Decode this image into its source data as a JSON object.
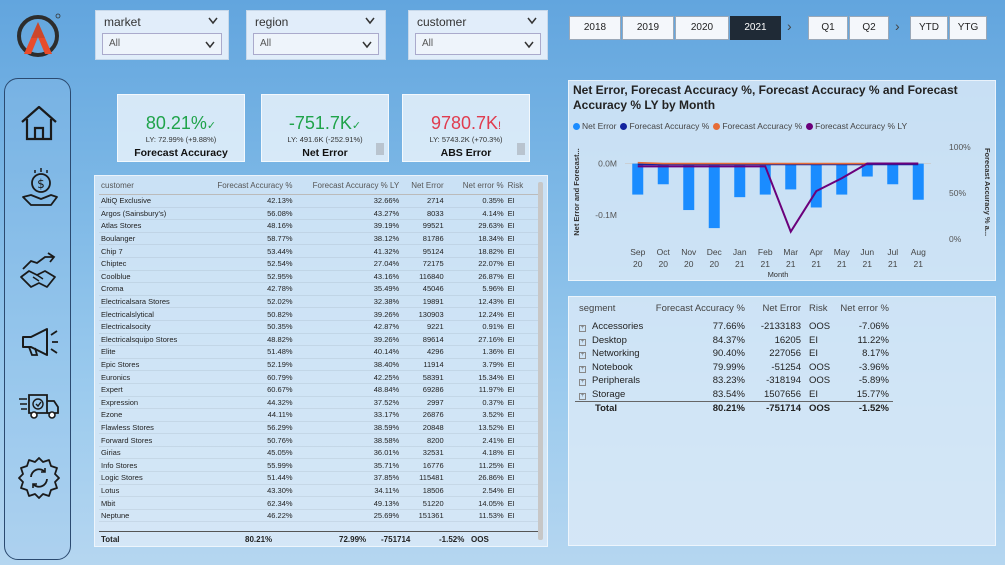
{
  "filters": [
    {
      "label": "market",
      "value": "All"
    },
    {
      "label": "region",
      "value": "All"
    },
    {
      "label": "customer",
      "value": "All"
    }
  ],
  "period": {
    "years": [
      "2018",
      "2019",
      "2020",
      "2021"
    ],
    "selected_year": "2021",
    "quarters": [
      "Q1",
      "Q2"
    ],
    "modes": [
      "YTD",
      "YTG"
    ],
    "arrow": "›"
  },
  "kpis": [
    {
      "value": "80.21%",
      "mark": "✓",
      "sub": "LY: 72.99% (+9.88%)",
      "title": "Forecast Accuracy",
      "color": "#1fa34a"
    },
    {
      "value": "-751.7K",
      "mark": "✓",
      "sub": "LY: 491.6K (-252.91%)",
      "title": "Net Error",
      "color": "#1fa34a"
    },
    {
      "value": "9780.7K",
      "mark": "!",
      "sub": "LY: 5743.2K (+70.3%)",
      "title": "ABS Error",
      "color": "#e03c4f"
    }
  ],
  "customer_table": {
    "headers": [
      "customer",
      "Forecast Accuracy %",
      "Forecast Accuracy % LY",
      "Net Error",
      "Net error %",
      "Risk"
    ],
    "rows": [
      [
        "AltiQ Exclusive",
        "42.13%",
        "32.66%",
        "2714",
        "0.35%",
        "EI"
      ],
      [
        "Argos (Sainsbury's)",
        "56.08%",
        "43.27%",
        "8033",
        "4.14%",
        "EI"
      ],
      [
        "Atlas Stores",
        "48.16%",
        "39.19%",
        "99521",
        "29.63%",
        "EI"
      ],
      [
        "Boulanger",
        "58.77%",
        "38.12%",
        "81786",
        "18.34%",
        "EI"
      ],
      [
        "Chip 7",
        "53.44%",
        "41.32%",
        "95124",
        "18.82%",
        "EI"
      ],
      [
        "Chiptec",
        "52.54%",
        "27.04%",
        "72175",
        "22.07%",
        "EI"
      ],
      [
        "Coolblue",
        "52.95%",
        "43.16%",
        "116840",
        "26.87%",
        "EI"
      ],
      [
        "Croma",
        "42.78%",
        "35.49%",
        "45046",
        "5.96%",
        "EI"
      ],
      [
        "Electricalsara Stores",
        "52.02%",
        "32.38%",
        "19891",
        "12.43%",
        "EI"
      ],
      [
        "Electricalslytical",
        "50.82%",
        "39.26%",
        "130903",
        "12.24%",
        "EI"
      ],
      [
        "Electricalsocity",
        "50.35%",
        "42.87%",
        "9221",
        "0.91%",
        "EI"
      ],
      [
        "Electricalsquipo Stores",
        "48.82%",
        "39.26%",
        "89614",
        "27.16%",
        "EI"
      ],
      [
        "Elite",
        "51.48%",
        "40.14%",
        "4296",
        "1.36%",
        "EI"
      ],
      [
        "Epic Stores",
        "52.19%",
        "38.40%",
        "11914",
        "3.79%",
        "EI"
      ],
      [
        "Euronics",
        "60.79%",
        "42.25%",
        "58391",
        "15.34%",
        "EI"
      ],
      [
        "Expert",
        "60.67%",
        "48.84%",
        "69286",
        "11.97%",
        "EI"
      ],
      [
        "Expression",
        "44.32%",
        "37.52%",
        "2997",
        "0.37%",
        "EI"
      ],
      [
        "Ezone",
        "44.11%",
        "33.17%",
        "26876",
        "3.52%",
        "EI"
      ],
      [
        "Flawless Stores",
        "56.29%",
        "38.59%",
        "20848",
        "13.52%",
        "EI"
      ],
      [
        "Forward Stores",
        "50.76%",
        "38.58%",
        "8200",
        "2.41%",
        "EI"
      ],
      [
        "Girias",
        "45.05%",
        "36.01%",
        "32531",
        "4.18%",
        "EI"
      ],
      [
        "Info Stores",
        "55.99%",
        "35.71%",
        "16776",
        "11.25%",
        "EI"
      ],
      [
        "Logic Stores",
        "51.44%",
        "37.85%",
        "115481",
        "26.86%",
        "EI"
      ],
      [
        "Lotus",
        "43.30%",
        "34.11%",
        "18506",
        "2.54%",
        "EI"
      ],
      [
        "Mbit",
        "62.34%",
        "49.13%",
        "51220",
        "14.05%",
        "EI"
      ],
      [
        "Neptune",
        "46.22%",
        "25.69%",
        "151361",
        "11.53%",
        "EI"
      ]
    ],
    "total": [
      "Total",
      "80.21%",
      "72.99%",
      "-751714",
      "-1.52%",
      "OOS"
    ]
  },
  "chart": {
    "title": "Net Error, Forecast Accuracy %, Forecast Accuracy % and Forecast Accuracy % LY by Month",
    "legend": [
      {
        "name": "Net Error",
        "color": "#1a8cff"
      },
      {
        "name": "Forecast Accuracy %",
        "color": "#12239e"
      },
      {
        "name": "Forecast Accuracy %",
        "color": "#e66c37"
      },
      {
        "name": "Forecast Accuracy % LY",
        "color": "#6b007b"
      }
    ],
    "y_left_label": "Net Error and Forecast...",
    "y_right_label": "Forecast Accuracy % a...",
    "x_axis_label": "Month",
    "left_ticks": [
      "0.0M",
      "-0.1M"
    ],
    "right_ticks": [
      "100%",
      "50%",
      "0%"
    ]
  },
  "chart_data": {
    "type": "bar",
    "title": "Net Error, Forecast Accuracy %, Forecast Accuracy % and Forecast Accuracy % LY by Month",
    "categories": [
      "Sep 20",
      "Oct 20",
      "Nov 20",
      "Dec 20",
      "Jan 21",
      "Feb 21",
      "Mar 21",
      "Apr 21",
      "May 21",
      "Jun 21",
      "Jul 21",
      "Aug 21"
    ],
    "x_labels": [
      [
        "Sep",
        "20"
      ],
      [
        "Oct",
        "20"
      ],
      [
        "Nov",
        "20"
      ],
      [
        "Dec",
        "20"
      ],
      [
        "Jan",
        "21"
      ],
      [
        "Feb",
        "21"
      ],
      [
        "Mar",
        "21"
      ],
      [
        "Apr",
        "21"
      ],
      [
        "May",
        "21"
      ],
      [
        "Jun",
        "21"
      ],
      [
        "Jul",
        "21"
      ],
      [
        "Aug",
        "21"
      ]
    ],
    "xlabel": "Month",
    "ylabel": "Net Error and Forecast...",
    "y2label": "Forecast Accuracy % a...",
    "ylim": [
      -0.15,
      0.04
    ],
    "y2lim": [
      0,
      100
    ],
    "series": [
      {
        "name": "Net Error",
        "kind": "bar",
        "axis": "left",
        "values": [
          -0.06,
          -0.04,
          -0.09,
          -0.125,
          -0.065,
          -0.06,
          -0.05,
          -0.085,
          -0.06,
          -0.025,
          -0.04,
          -0.07
        ]
      },
      {
        "name": "Forecast Accuracy %",
        "kind": "line",
        "axis": "right",
        "values": [
          81,
          81,
          81,
          81,
          81,
          81,
          81,
          81,
          81,
          81,
          81,
          81
        ]
      },
      {
        "name": "Forecast Accuracy %",
        "kind": "line",
        "axis": "right",
        "values": [
          83,
          82,
          82,
          82,
          82,
          82,
          82,
          82,
          82,
          82,
          82,
          82
        ]
      },
      {
        "name": "Forecast Accuracy % LY",
        "kind": "line",
        "axis": "right",
        "values": [
          79,
          79,
          79,
          79,
          79,
          79,
          8,
          52,
          66,
          82,
          82,
          82
        ]
      }
    ]
  },
  "segment_table": {
    "headers": [
      "segment",
      "Forecast Accuracy %",
      "Net Error",
      "Risk",
      "Net error %"
    ],
    "rows": [
      [
        "Accessories",
        "77.66%",
        "-2133183",
        "OOS",
        "-7.06%"
      ],
      [
        "Desktop",
        "84.37%",
        "16205",
        "EI",
        "11.22%"
      ],
      [
        "Networking",
        "90.40%",
        "227056",
        "EI",
        "8.17%"
      ],
      [
        "Notebook",
        "79.99%",
        "-51254",
        "OOS",
        "-3.96%"
      ],
      [
        "Peripherals",
        "83.23%",
        "-318194",
        "OOS",
        "-5.89%"
      ],
      [
        "Storage",
        "83.54%",
        "1507656",
        "EI",
        "15.77%"
      ]
    ],
    "total": [
      "Total",
      "80.21%",
      "-751714",
      "OOS",
      "-1.52%"
    ],
    "expander_glyph": "+"
  }
}
